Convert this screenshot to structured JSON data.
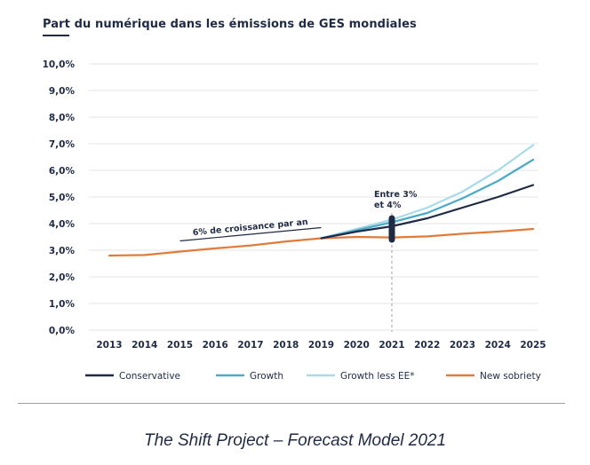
{
  "chart_data": {
    "type": "line",
    "title": "Part du numérique dans les émissions de GES mondiales",
    "xlabel": "",
    "ylabel": "",
    "x": [
      2013,
      2014,
      2015,
      2016,
      2017,
      2018,
      2019,
      2020,
      2021,
      2022,
      2023,
      2024,
      2025
    ],
    "ylim": [
      0,
      10
    ],
    "y_ticks": [
      "0,0%",
      "1,0%",
      "2,0%",
      "3,0%",
      "4,0%",
      "5,0%",
      "6,0%",
      "7,0%",
      "8,0%",
      "9,0%",
      "10,0%"
    ],
    "x_ticks": [
      "2013",
      "2014",
      "2015",
      "2016",
      "2017",
      "2018",
      "2019",
      "2020",
      "2021",
      "2022",
      "2023",
      "2024",
      "2025"
    ],
    "grid": "horizontal",
    "legend_position": "bottom",
    "series": [
      {
        "name": "Conservative",
        "color": "#1f2a44",
        "x": [
          2019,
          2020,
          2021,
          2022,
          2023,
          2024,
          2025
        ],
        "values": [
          3.45,
          3.7,
          3.9,
          4.2,
          4.6,
          5.0,
          5.45
        ]
      },
      {
        "name": "Growth",
        "color": "#4aaac8",
        "x": [
          2019,
          2020,
          2021,
          2022,
          2023,
          2024,
          2025
        ],
        "values": [
          3.45,
          3.75,
          4.05,
          4.4,
          4.95,
          5.6,
          6.4
        ]
      },
      {
        "name": "Growth less EE*",
        "color": "#a8dbe8",
        "x": [
          2019,
          2020,
          2021,
          2022,
          2023,
          2024,
          2025
        ],
        "values": [
          3.45,
          3.8,
          4.15,
          4.6,
          5.2,
          6.0,
          6.95
        ]
      },
      {
        "name": "New sobriety",
        "color": "#e07b39",
        "x": [
          2013,
          2014,
          2015,
          2016,
          2017,
          2018,
          2019,
          2020,
          2021,
          2022,
          2023,
          2024,
          2025
        ],
        "values": [
          2.8,
          2.82,
          2.95,
          3.07,
          3.18,
          3.33,
          3.45,
          3.5,
          3.48,
          3.52,
          3.62,
          3.7,
          3.8
        ]
      }
    ],
    "annotations": [
      {
        "text": "6% de croissance par an",
        "type": "trend_line",
        "x": [
          2015,
          2019
        ],
        "y": [
          3.35,
          3.85
        ]
      },
      {
        "text_lines": [
          "Entre 3%",
          "et 4%"
        ],
        "type": "range_marker",
        "x": 2021,
        "y_range": [
          3.4,
          4.2
        ]
      }
    ],
    "reference_line": {
      "type": "vertical_dashed",
      "x": 2021
    }
  },
  "caption": "The Shift Project – Forecast Model 2021"
}
